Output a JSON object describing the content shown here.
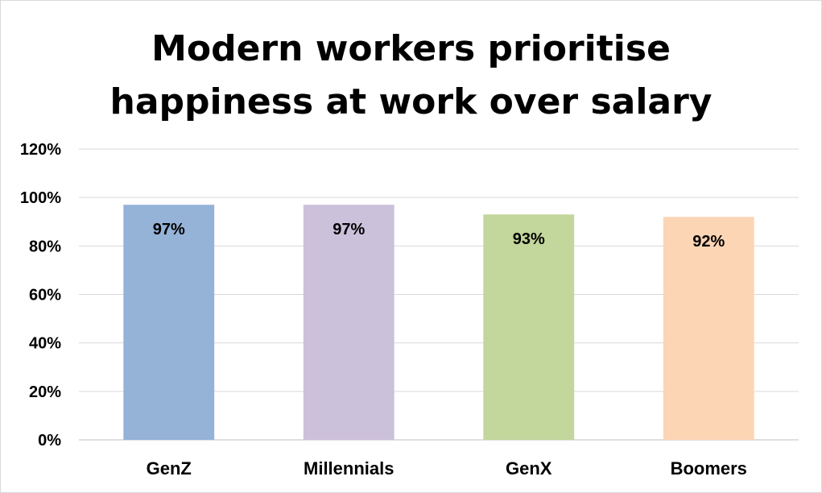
{
  "chart_data": {
    "type": "bar",
    "title_lines": [
      "Modern workers prioritise",
      "happiness at work over salary"
    ],
    "categories": [
      "GenZ",
      "Millennials",
      "GenX",
      "Boomers"
    ],
    "values": [
      97,
      97,
      93,
      92
    ],
    "data_labels": [
      "97%",
      "97%",
      "93%",
      "92%"
    ],
    "colors": [
      "#95b3d7",
      "#ccc1da",
      "#c3d69b",
      "#fcd5b5"
    ],
    "ylim": [
      0,
      120
    ],
    "yticks": [
      0,
      20,
      40,
      60,
      80,
      100,
      120
    ],
    "ytick_labels": [
      "0%",
      "20%",
      "40%",
      "60%",
      "80%",
      "100%",
      "120%"
    ],
    "grid": true,
    "legend": "none"
  }
}
